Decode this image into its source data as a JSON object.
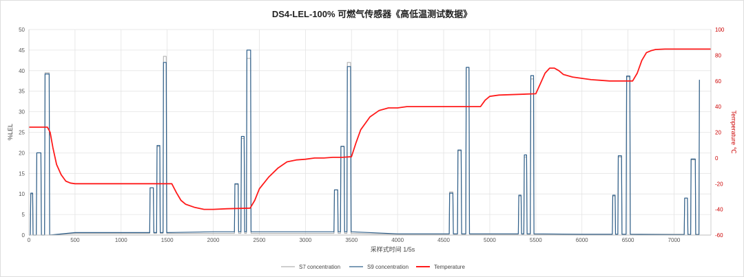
{
  "chart_data": {
    "type": "line",
    "title": "DS4-LEL-100% 可燃气传感器《高低温测试数据》",
    "xlabel": "采样式时间 1/5s",
    "ylabel": "%LEL",
    "y2label": "Temperature ℃",
    "xlim": [
      0,
      7400
    ],
    "ylim": [
      0,
      50
    ],
    "y2lim": [
      -60,
      100
    ],
    "xticks": [
      0,
      500,
      1000,
      1500,
      2000,
      2500,
      3000,
      3500,
      4000,
      4500,
      5000,
      5500,
      6000,
      6500,
      7000
    ],
    "yticks": [
      0,
      5,
      10,
      15,
      20,
      25,
      30,
      35,
      40,
      45,
      50
    ],
    "y2ticks": [
      -60,
      -40,
      -20,
      0,
      20,
      40,
      60,
      80,
      100
    ],
    "grid": true,
    "legend_position": "bottom",
    "colors": {
      "S7": "#b0b0b0",
      "S9": "#2e5f8a",
      "Temperature": "#ff1a1a"
    },
    "series": [
      {
        "name": "S7  concentration",
        "axis": "left",
        "x": [
          0,
          15,
          20,
          40,
          45,
          80,
          85,
          130,
          135,
          170,
          175,
          220,
          225,
          500,
          1310,
          1315,
          1350,
          1355,
          1385,
          1390,
          1420,
          1425,
          1455,
          1460,
          1490,
          1495,
          2000,
          2230,
          2235,
          2270,
          2275,
          2300,
          2305,
          2335,
          2340,
          2360,
          2365,
          2405,
          2410,
          3000,
          3310,
          3315,
          3350,
          3355,
          3380,
          3385,
          3420,
          3425,
          3450,
          3455,
          3490,
          3495,
          4000,
          4560,
          4565,
          4600,
          4605,
          4650,
          4655,
          4690,
          4695,
          4740,
          4745,
          4775,
          4780,
          5000,
          5310,
          5315,
          5340,
          5345,
          5370,
          5375,
          5400,
          5405,
          5440,
          5445,
          5475,
          5480,
          6000,
          6330,
          6335,
          6360,
          6365,
          6390,
          6395,
          6430,
          6435,
          6480,
          6485,
          6520,
          6525,
          7000,
          7110,
          7115,
          7145,
          7150,
          7180,
          7185,
          7230,
          7235,
          7270,
          7275
        ],
        "y": [
          0,
          0,
          10,
          10,
          0,
          0,
          20,
          20,
          0,
          0,
          39.5,
          39.5,
          0,
          0.4,
          0.4,
          11.5,
          11.5,
          0.4,
          0.4,
          21.5,
          21.5,
          0.4,
          0.4,
          43.5,
          43.5,
          0.4,
          0.4,
          0.4,
          12.3,
          12.3,
          0.4,
          0.4,
          23.5,
          23.5,
          0.4,
          0.4,
          43,
          43,
          0.4,
          0.4,
          0.4,
          11,
          11,
          0.4,
          0.4,
          21.5,
          21.5,
          0.4,
          0.4,
          42,
          42,
          0.4,
          0.2,
          0.2,
          10.5,
          10.5,
          0.2,
          0.2,
          20.5,
          20.5,
          0.2,
          0.2,
          40.8,
          40.8,
          0.2,
          0.2,
          0.2,
          9.5,
          9.5,
          0.2,
          0.2,
          19,
          19,
          0.2,
          0.2,
          38,
          38,
          0.2,
          0.2,
          0.2,
          9.5,
          9.5,
          0.2,
          0.2,
          19,
          19,
          0.2,
          0.2,
          38.5,
          38.5,
          0.2,
          0.2,
          0.2,
          9,
          9,
          0.2,
          0.2,
          18.3,
          18.3,
          0.2,
          0.2,
          37.5
        ]
      },
      {
        "name": "S9  concentration",
        "axis": "left",
        "x": [
          0,
          15,
          20,
          40,
          45,
          80,
          85,
          130,
          135,
          170,
          175,
          220,
          225,
          500,
          1310,
          1315,
          1350,
          1355,
          1385,
          1390,
          1420,
          1425,
          1455,
          1460,
          1490,
          1495,
          2000,
          2230,
          2235,
          2270,
          2275,
          2300,
          2305,
          2335,
          2340,
          2360,
          2365,
          2405,
          2410,
          3000,
          3310,
          3315,
          3350,
          3355,
          3380,
          3385,
          3420,
          3425,
          3450,
          3455,
          3490,
          3495,
          4000,
          4560,
          4565,
          4600,
          4605,
          4650,
          4655,
          4690,
          4695,
          4740,
          4745,
          4775,
          4780,
          5000,
          5310,
          5315,
          5340,
          5345,
          5370,
          5375,
          5400,
          5405,
          5440,
          5445,
          5475,
          5480,
          6000,
          6330,
          6335,
          6360,
          6365,
          6390,
          6395,
          6430,
          6435,
          6480,
          6485,
          6520,
          6525,
          7000,
          7110,
          7115,
          7145,
          7150,
          7180,
          7185,
          7230,
          7235,
          7270,
          7275
        ],
        "y": [
          0,
          0,
          10.2,
          10.2,
          0,
          0,
          20,
          20,
          0,
          0,
          39.2,
          39.2,
          0,
          0.6,
          0.6,
          11.5,
          11.5,
          0.6,
          0.6,
          21.8,
          21.8,
          0.6,
          0.6,
          42,
          42,
          0.6,
          0.8,
          0.8,
          12.5,
          12.5,
          0.8,
          0.8,
          24,
          24,
          0.8,
          0.8,
          45,
          45,
          0.8,
          0.8,
          0.8,
          11,
          11,
          0.8,
          0.8,
          21.6,
          21.6,
          0.8,
          0.8,
          41,
          41,
          0.8,
          0.3,
          0.3,
          10.2,
          10.2,
          0.3,
          0.3,
          20.7,
          20.7,
          0.3,
          0.3,
          40.8,
          40.8,
          0.3,
          0.3,
          0.3,
          9.7,
          9.7,
          0.3,
          0.3,
          19.5,
          19.5,
          0.3,
          0.3,
          38.8,
          38.8,
          0.3,
          0.2,
          0.2,
          9.7,
          9.7,
          0.2,
          0.2,
          19.3,
          19.3,
          0.2,
          0.2,
          38.7,
          38.7,
          0.2,
          0.1,
          0.1,
          9,
          9,
          0.1,
          0.1,
          18.5,
          18.5,
          0.1,
          0.1,
          37.8
        ]
      },
      {
        "name": "Temperature",
        "axis": "right",
        "x": [
          0,
          200,
          230,
          260,
          300,
          350,
          400,
          450,
          500,
          1550,
          1600,
          1650,
          1700,
          1800,
          1900,
          2000,
          2150,
          2400,
          2450,
          2500,
          2600,
          2700,
          2800,
          2900,
          3000,
          3100,
          3200,
          3300,
          3400,
          3500,
          3550,
          3600,
          3700,
          3800,
          3900,
          4000,
          4100,
          4500,
          4900,
          4950,
          5000,
          5100,
          5500,
          5550,
          5600,
          5650,
          5700,
          5750,
          5800,
          5900,
          6000,
          6100,
          6200,
          6300,
          6400,
          6550,
          6600,
          6650,
          6700,
          6750,
          6800,
          6900,
          7000,
          7100,
          7200,
          7300,
          7400
        ],
        "y": [
          24,
          24,
          20,
          8,
          -5,
          -13,
          -18,
          -19.5,
          -20,
          -20,
          -27,
          -33,
          -36,
          -38.5,
          -40,
          -40,
          -39.5,
          -39,
          -33,
          -24,
          -15,
          -8,
          -3,
          -1.5,
          -1,
          0,
          0,
          0.5,
          0.5,
          1,
          12,
          22,
          32,
          37,
          39,
          39,
          40,
          40,
          40,
          45,
          48,
          49,
          50,
          58,
          66,
          70,
          70,
          68,
          65,
          63,
          62,
          61,
          60.5,
          60,
          60,
          60,
          66,
          76,
          82,
          83.5,
          84.5,
          84.8,
          84.8,
          84.8,
          84.8,
          84.8,
          84.8
        ]
      }
    ]
  }
}
